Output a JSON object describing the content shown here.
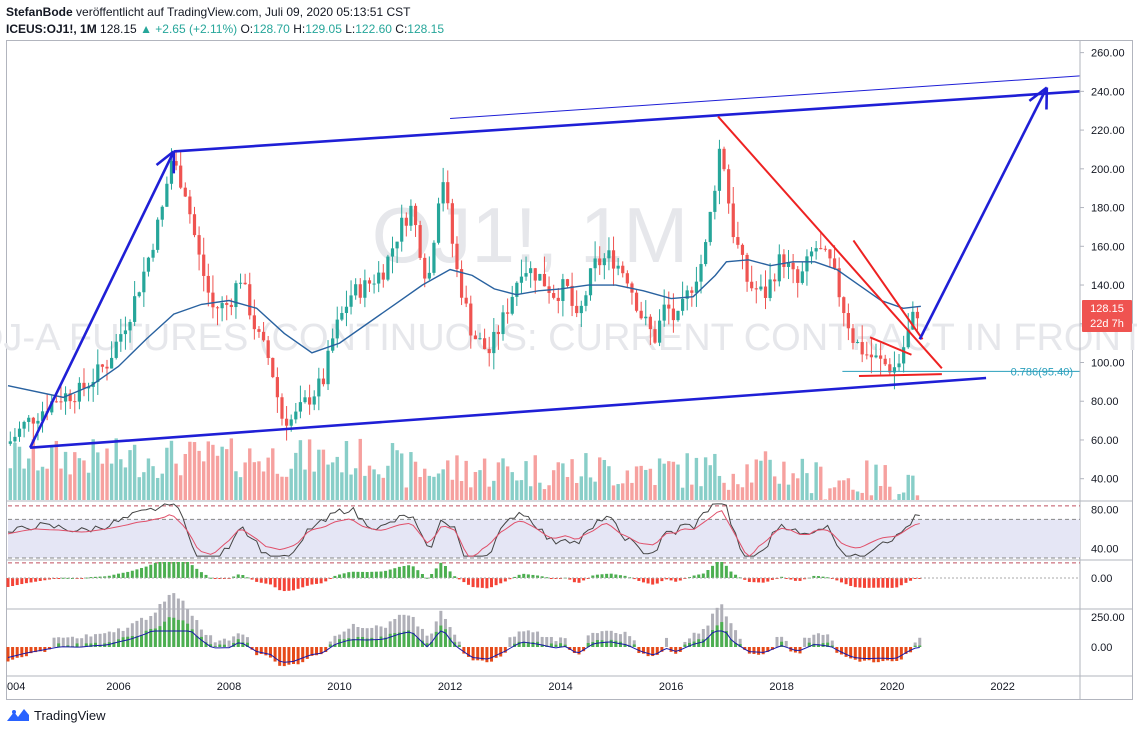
{
  "header": {
    "author": "StefanBode",
    "published": "veröffentlicht auf TradingView.com, Juli 09, 2020 05:13:51 CST",
    "symbol": "ICEUS:OJ1!, 1M",
    "last": "128.15",
    "change": "▲ +2.65 (+2.11%)",
    "o_label": "O:",
    "o": "128.70",
    "h_label": "H:",
    "h": "129.05",
    "l_label": "L:",
    "l": "122.60",
    "c_label": "C:",
    "c": "128.15"
  },
  "watermark": {
    "symbol": "OJ1!, 1M",
    "description": "FCOJ-A FUTURES (CONTINUOUS: CURRENT CONTRACT IN FRONT)"
  },
  "price_badge": {
    "price": "128.15",
    "countdown": "22d 7h"
  },
  "fib_label": "0.786(95.40)",
  "footer": {
    "brand": "TradingView"
  },
  "colors": {
    "up": "#26a69a",
    "down": "#ef5350",
    "ma": "#2962a0",
    "trend_blue": "#1f1fd6",
    "trend_red": "#ee2222",
    "rsi_band": "#e5e6f5",
    "rsi_line": "#444444",
    "rsi_ma": "#e0506a",
    "osc_pos": "#4caf50",
    "osc_neg": "#f44336",
    "fib": "#2a9fbc"
  },
  "chart_data": {
    "type": "candlestick",
    "interval": "1M",
    "y_axis": {
      "range": [
        29,
        266
      ],
      "ticks": [
        "260.00",
        "240.00",
        "220.00",
        "200.00",
        "180.00",
        "160.00",
        "140.00",
        "120.00",
        "100.00",
        "80.00",
        "60.00",
        "40.00"
      ]
    },
    "x_axis": {
      "range": [
        2004.0,
        2023.4
      ],
      "ticks": [
        "004",
        "2006",
        "2008",
        "2010",
        "2012",
        "2014",
        "2016",
        "2018",
        "2020",
        "2022"
      ]
    },
    "price_path": [
      [
        2004.0,
        58
      ],
      [
        2004.3,
        68
      ],
      [
        2004.6,
        75
      ],
      [
        2004.9,
        82
      ],
      [
        2005.3,
        85
      ],
      [
        2005.8,
        100
      ],
      [
        2006.2,
        125
      ],
      [
        2006.5,
        150
      ],
      [
        2006.8,
        180
      ],
      [
        2006.95,
        205
      ],
      [
        2007.2,
        190
      ],
      [
        2007.45,
        155
      ],
      [
        2007.7,
        128
      ],
      [
        2008.0,
        130
      ],
      [
        2008.2,
        145
      ],
      [
        2008.5,
        115
      ],
      [
        2008.75,
        100
      ],
      [
        2008.95,
        72
      ],
      [
        2009.15,
        70
      ],
      [
        2009.4,
        80
      ],
      [
        2009.7,
        90
      ],
      [
        2009.9,
        115
      ],
      [
        2010.2,
        135
      ],
      [
        2010.5,
        140
      ],
      [
        2010.8,
        148
      ],
      [
        2011.1,
        170
      ],
      [
        2011.3,
        180
      ],
      [
        2011.6,
        140
      ],
      [
        2011.85,
        200
      ],
      [
        2012.1,
        150
      ],
      [
        2012.4,
        115
      ],
      [
        2012.7,
        105
      ],
      [
        2013.0,
        125
      ],
      [
        2013.3,
        150
      ],
      [
        2013.6,
        145
      ],
      [
        2013.9,
        135
      ],
      [
        2014.1,
        140
      ],
      [
        2014.3,
        120
      ],
      [
        2014.6,
        150
      ],
      [
        2014.9,
        155
      ],
      [
        2015.2,
        145
      ],
      [
        2015.45,
        125
      ],
      [
        2015.7,
        112
      ],
      [
        2015.9,
        130
      ],
      [
        2016.1,
        120
      ],
      [
        2016.3,
        135
      ],
      [
        2016.6,
        155
      ],
      [
        2016.78,
        190
      ],
      [
        2016.9,
        215
      ],
      [
        2017.1,
        170
      ],
      [
        2017.4,
        140
      ],
      [
        2017.7,
        135
      ],
      [
        2018.0,
        155
      ],
      [
        2018.3,
        140
      ],
      [
        2018.6,
        160
      ],
      [
        2018.9,
        150
      ],
      [
        2019.1,
        130
      ],
      [
        2019.3,
        112
      ],
      [
        2019.5,
        105
      ],
      [
        2019.8,
        100
      ],
      [
        2020.0,
        97
      ],
      [
        2020.1,
        98
      ],
      [
        2020.25,
        112
      ],
      [
        2020.4,
        125
      ],
      [
        2020.52,
        128
      ]
    ],
    "ma_path": [
      [
        2004.0,
        88
      ],
      [
        2005.0,
        82
      ],
      [
        2005.5,
        88
      ],
      [
        2006.0,
        98
      ],
      [
        2006.5,
        112
      ],
      [
        2007.0,
        125
      ],
      [
        2007.5,
        130
      ],
      [
        2008.0,
        132
      ],
      [
        2008.5,
        128
      ],
      [
        2009.0,
        115
      ],
      [
        2009.5,
        105
      ],
      [
        2010.0,
        110
      ],
      [
        2010.5,
        120
      ],
      [
        2011.0,
        130
      ],
      [
        2011.5,
        140
      ],
      [
        2012.0,
        148
      ],
      [
        2012.4,
        145
      ],
      [
        2012.8,
        138
      ],
      [
        2013.2,
        135
      ],
      [
        2013.6,
        137
      ],
      [
        2014.0,
        138
      ],
      [
        2014.5,
        140
      ],
      [
        2015.0,
        140
      ],
      [
        2015.5,
        137
      ],
      [
        2016.0,
        133
      ],
      [
        2016.4,
        134
      ],
      [
        2016.8,
        145
      ],
      [
        2017.0,
        152
      ],
      [
        2017.4,
        153
      ],
      [
        2017.8,
        150
      ],
      [
        2018.2,
        152
      ],
      [
        2018.6,
        152
      ],
      [
        2019.0,
        148
      ],
      [
        2019.4,
        140
      ],
      [
        2019.8,
        132
      ],
      [
        2020.2,
        128
      ],
      [
        2020.52,
        129
      ]
    ],
    "trendlines": [
      {
        "color": "blue",
        "points": [
          [
            2004.4,
            56
          ],
          [
            2021.7,
            92
          ]
        ]
      },
      {
        "color": "blue",
        "points": [
          [
            2007.0,
            209
          ],
          [
            2023.4,
            240
          ]
        ]
      },
      {
        "color": "blue",
        "thin": true,
        "points": [
          [
            2012.0,
            226
          ],
          [
            2023.4,
            248
          ]
        ]
      },
      {
        "color": "red",
        "points": [
          [
            2016.85,
            227
          ],
          [
            2020.9,
            97
          ]
        ]
      },
      {
        "color": "red",
        "points": [
          [
            2019.4,
            93
          ],
          [
            2020.9,
            94
          ]
        ]
      },
      {
        "color": "red",
        "points": [
          [
            2019.6,
            113
          ],
          [
            2020.35,
            104
          ]
        ]
      },
      {
        "color": "red",
        "points": [
          [
            2019.3,
            163
          ],
          [
            2020.55,
            112
          ]
        ]
      }
    ],
    "arrows": [
      {
        "from": [
          2004.4,
          56
        ],
        "to": [
          2007.0,
          209
        ]
      },
      {
        "from": [
          2020.5,
          112
        ],
        "to": [
          2022.8,
          242
        ]
      }
    ],
    "fib_level": 95.4,
    "rsi": {
      "range": [
        29,
        88
      ],
      "ticks": [
        "80.00",
        "40.00"
      ],
      "band": [
        70,
        30
      ]
    },
    "oscillator_ticks": [
      "0.00"
    ],
    "histogram_ticks": [
      "250.00",
      "0.00"
    ]
  }
}
